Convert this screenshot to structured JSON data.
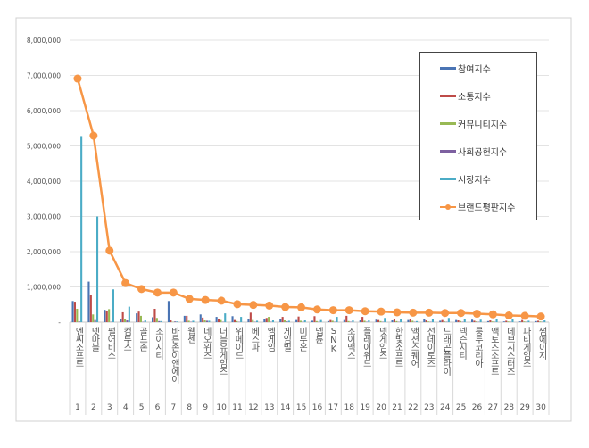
{
  "chart_data": {
    "type": "bar",
    "title": "",
    "xlabel": "",
    "ylabel": "",
    "ylim": [
      0,
      8000000
    ],
    "y_ticks": [
      "-",
      "1,000,000",
      "2,000,000",
      "3,000,000",
      "4,000,000",
      "5,000,000",
      "6,000,000",
      "7,000,000",
      "8,000,000"
    ],
    "grid": true,
    "legend_position": "top-right",
    "categories": [
      "엔씨소프트",
      "넷마블",
      "펄어비스",
      "컴투스",
      "골프존",
      "조이시티",
      "바른손이앤에이",
      "웹젠",
      "네오위즈",
      "더블유게임즈",
      "위메이드",
      "베스파",
      "엠게임",
      "게임빌",
      "미투온",
      "넵튠",
      "SNK",
      "조이맥스",
      "플레이위드",
      "넷게임즈",
      "한빛소프트",
      "액션스퀘어",
      "선데이토즈",
      "드래곤플라이",
      "넥슨지티",
      "룽투코리아",
      "액토즈소프트",
      "데브시스터즈",
      "파티게임즈",
      "썸에이지"
    ],
    "ranks": [
      "1",
      "2",
      "3",
      "4",
      "5",
      "6",
      "7",
      "8",
      "9",
      "10",
      "11",
      "12",
      "13",
      "14",
      "15",
      "16",
      "17",
      "18",
      "19",
      "20",
      "21",
      "22",
      "23",
      "24",
      "25",
      "26",
      "27",
      "28",
      "29",
      "30"
    ],
    "series": [
      {
        "name": "참여지수",
        "type": "bar",
        "color": "#4a74b4",
        "values": [
          600000,
          1150000,
          350000,
          80000,
          250000,
          140000,
          600000,
          180000,
          220000,
          150000,
          170000,
          80000,
          100000,
          90000,
          60000,
          40000,
          30000,
          60000,
          50000,
          70000,
          50000,
          60000,
          80000,
          40000,
          60000,
          70000,
          30000,
          20000,
          20000,
          30000
        ]
      },
      {
        "name": "소통지수",
        "type": "bar",
        "color": "#be4b48",
        "values": [
          580000,
          760000,
          330000,
          280000,
          300000,
          380000,
          50000,
          180000,
          130000,
          80000,
          60000,
          270000,
          120000,
          150000,
          160000,
          170000,
          60000,
          180000,
          150000,
          60000,
          80000,
          100000,
          50000,
          60000,
          50000,
          40000,
          50000,
          40000,
          60000,
          40000
        ]
      },
      {
        "name": "커뮤니티지수",
        "type": "bar",
        "color": "#98b954",
        "values": [
          380000,
          220000,
          370000,
          80000,
          180000,
          120000,
          10000,
          40000,
          50000,
          60000,
          30000,
          60000,
          150000,
          50000,
          40000,
          30000,
          40000,
          30000,
          40000,
          30000,
          30000,
          40000,
          20000,
          20000,
          30000,
          20000,
          20000,
          20000,
          20000,
          20000
        ]
      },
      {
        "name": "사회공헌지수",
        "type": "bar",
        "color": "#7d60a0",
        "values": [
          20000,
          60000,
          10000,
          50000,
          10000,
          30000,
          20000,
          10000,
          40000,
          10000,
          10000,
          10000,
          10000,
          20000,
          10000,
          10000,
          10000,
          10000,
          10000,
          10000,
          10000,
          10000,
          10000,
          10000,
          10000,
          10000,
          10000,
          10000,
          10000,
          10000
        ]
      },
      {
        "name": "시장지수",
        "type": "bar",
        "color": "#4bacc6",
        "values": [
          5280000,
          3000000,
          930000,
          440000,
          50000,
          30000,
          20000,
          40000,
          40000,
          250000,
          150000,
          40000,
          50000,
          40000,
          50000,
          60000,
          150000,
          50000,
          50000,
          120000,
          80000,
          30000,
          100000,
          120000,
          100000,
          70000,
          100000,
          80000,
          40000,
          50000
        ]
      },
      {
        "name": "브랜드평판지수",
        "type": "line",
        "color": "#f79646",
        "values": [
          6910000,
          5290000,
          2030000,
          1110000,
          940000,
          840000,
          840000,
          660000,
          630000,
          610000,
          510000,
          490000,
          470000,
          430000,
          420000,
          360000,
          340000,
          340000,
          310000,
          300000,
          280000,
          270000,
          270000,
          260000,
          260000,
          240000,
          220000,
          190000,
          180000,
          160000
        ]
      }
    ]
  }
}
